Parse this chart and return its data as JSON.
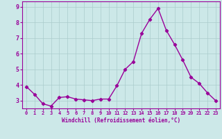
{
  "x": [
    0,
    1,
    2,
    3,
    4,
    5,
    6,
    7,
    8,
    9,
    10,
    11,
    12,
    13,
    14,
    15,
    16,
    17,
    18,
    19,
    20,
    21,
    22,
    23
  ],
  "y": [
    3.9,
    3.4,
    2.8,
    2.65,
    3.2,
    3.25,
    3.1,
    3.05,
    3.0,
    3.1,
    3.1,
    3.95,
    5.0,
    5.5,
    7.3,
    8.2,
    8.9,
    7.5,
    6.6,
    5.6,
    4.5,
    4.1,
    3.5,
    3.0
  ],
  "line_color": "#990099",
  "marker": "D",
  "marker_size": 2.2,
  "bg_color": "#cce8e8",
  "grid_color": "#aacccc",
  "xlabel": "Windchill (Refroidissement éolien,°C)",
  "xlabel_color": "#990099",
  "tick_color": "#990099",
  "ylim": [
    2.5,
    9.35
  ],
  "xlim": [
    -0.5,
    23.5
  ],
  "yticks": [
    3,
    4,
    5,
    6,
    7,
    8,
    9
  ],
  "xticks": [
    0,
    1,
    2,
    3,
    4,
    5,
    6,
    7,
    8,
    9,
    10,
    11,
    12,
    13,
    14,
    15,
    16,
    17,
    18,
    19,
    20,
    21,
    22,
    23
  ],
  "spine_color": "#990099",
  "linewidth": 1.0,
  "xlabel_fontsize": 5.5,
  "xtick_fontsize": 5.0,
  "ytick_fontsize": 6.0
}
